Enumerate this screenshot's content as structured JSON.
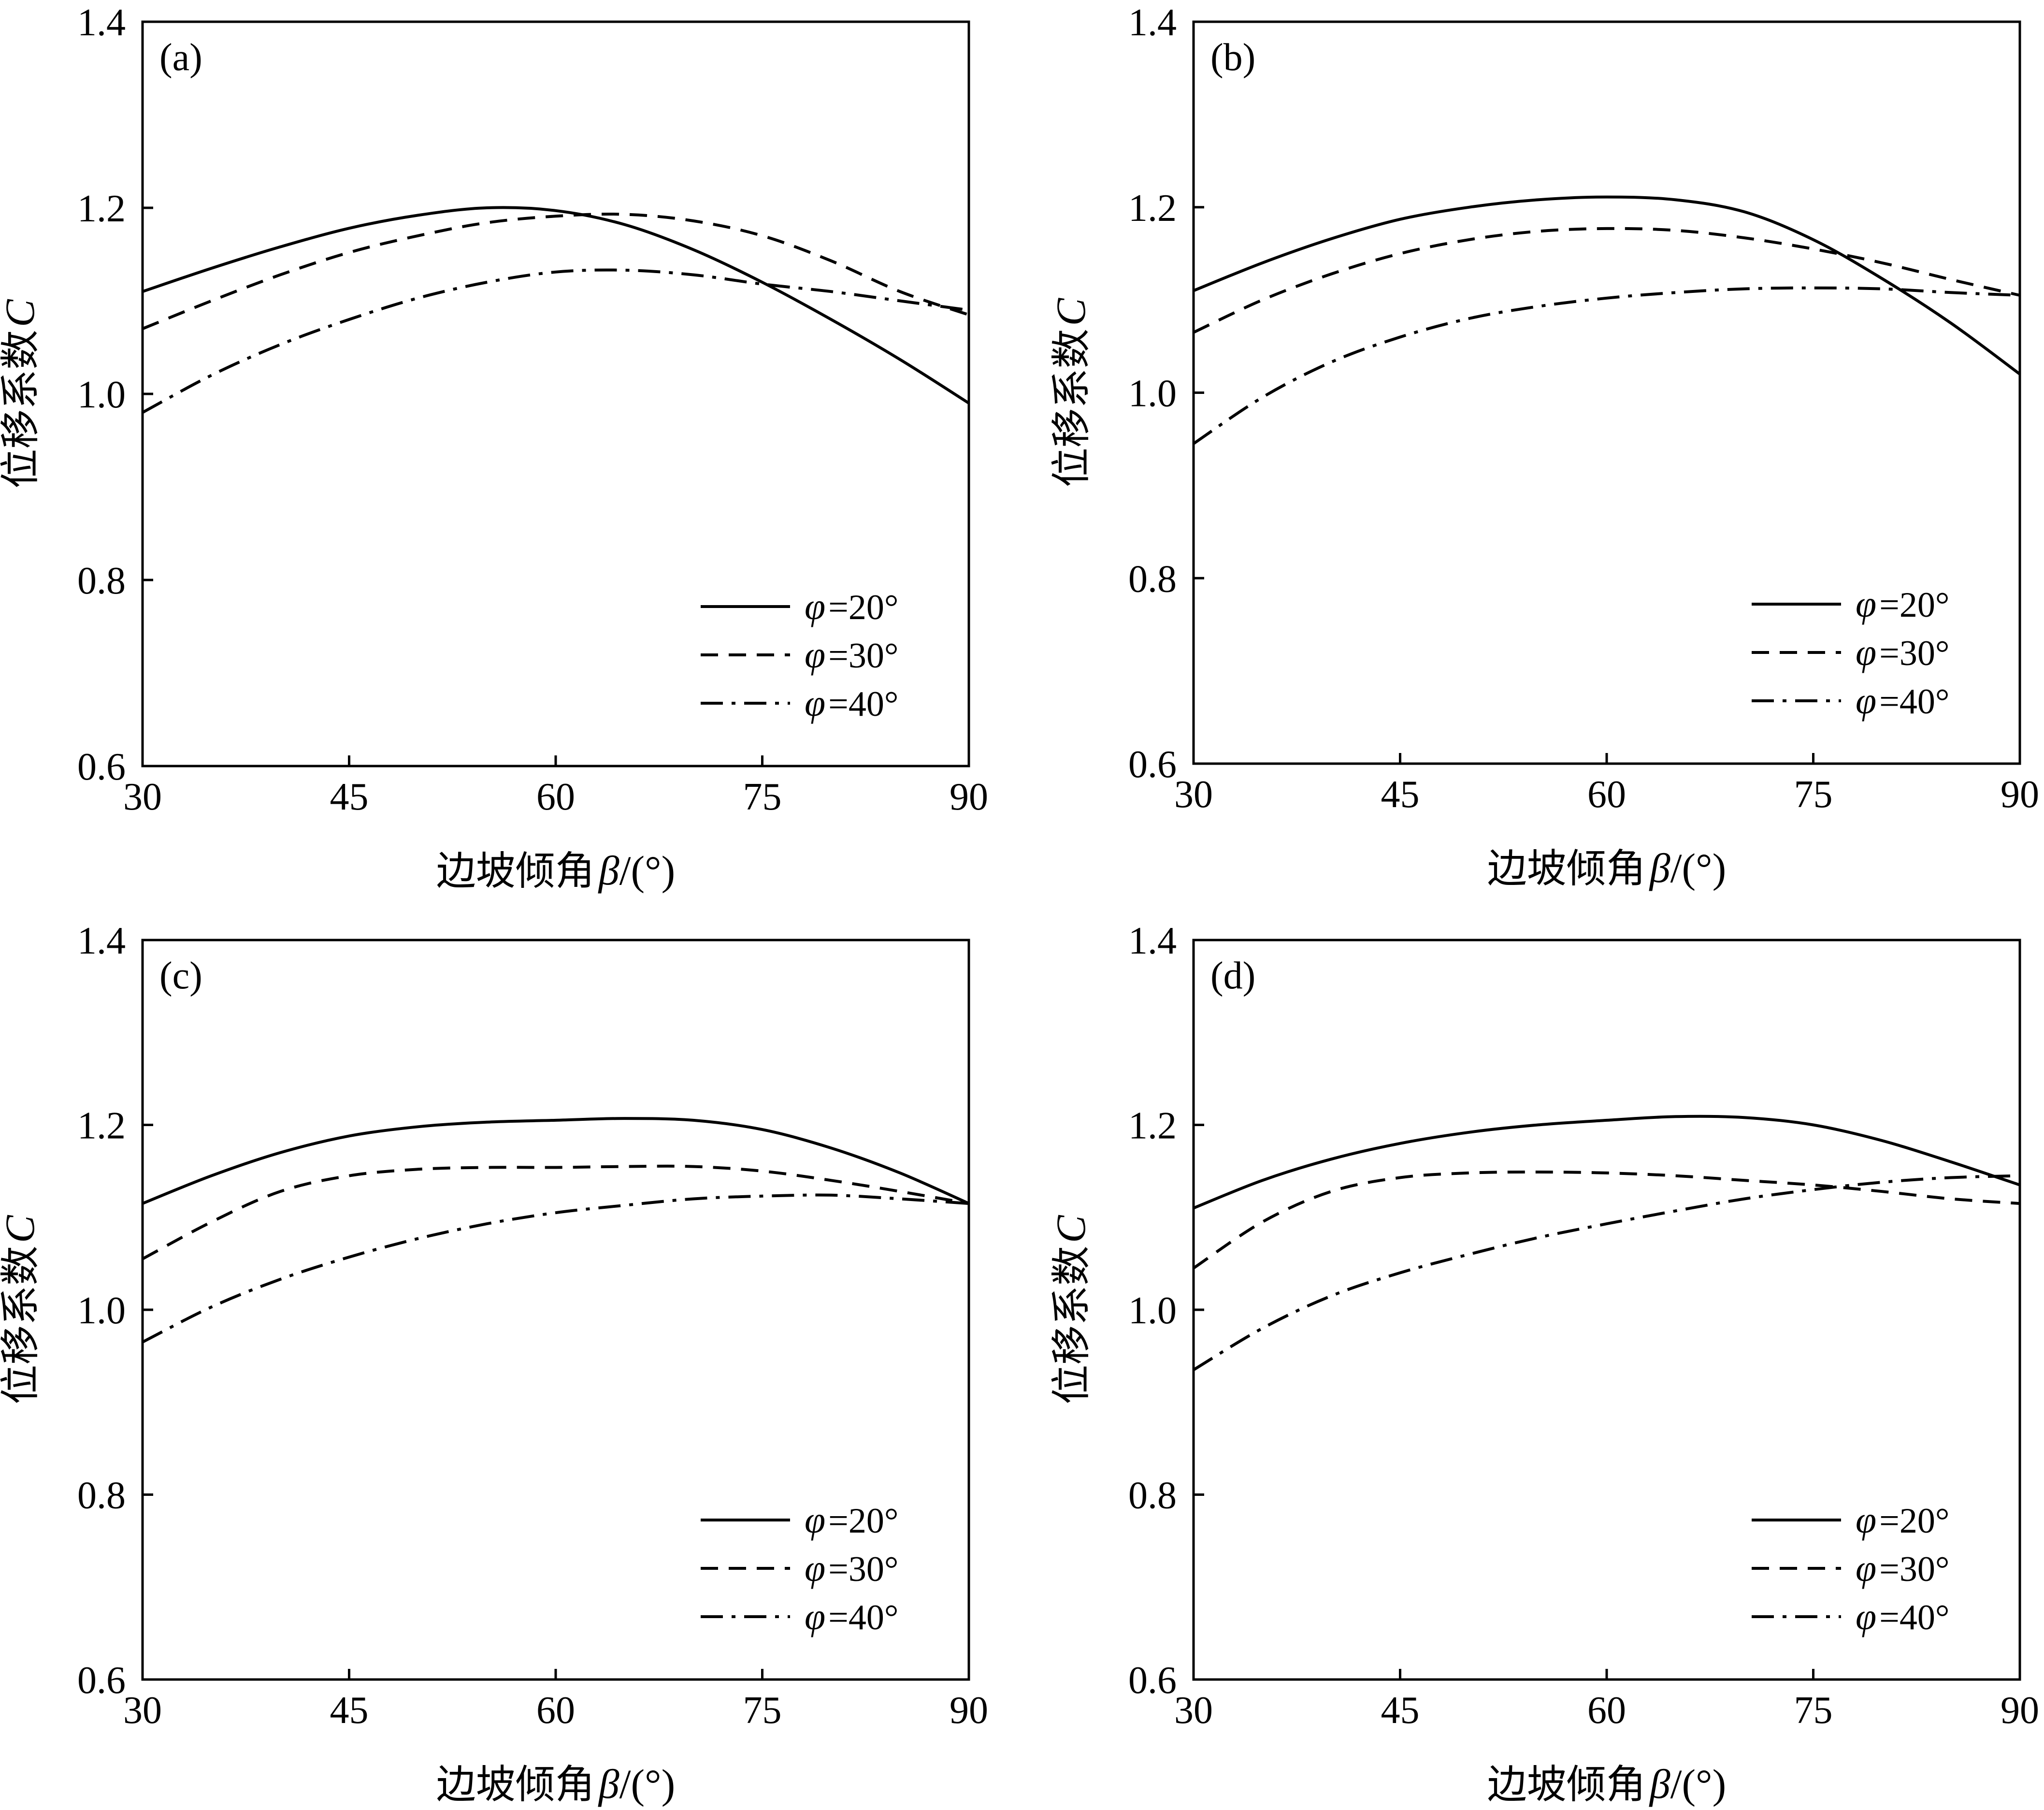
{
  "chart_data": [
    {
      "type": "line",
      "panel_label": "(a)",
      "xlabel": "边坡倾角",
      "xlabel_symbol": "β",
      "xlabel_unit": "/(°)",
      "ylabel": "位移系数",
      "ylabel_symbol": "C",
      "xlim": [
        30,
        90
      ],
      "ylim": [
        0.6,
        1.4
      ],
      "xticks": [
        "30",
        "45",
        "60",
        "75",
        "90"
      ],
      "yticks": [
        "0.6",
        "0.8",
        "1.0",
        "1.2",
        "1.4"
      ],
      "legend_position": "bottom-right",
      "grid": false,
      "x": [
        30,
        35,
        40,
        45,
        50,
        55,
        60,
        65,
        70,
        75,
        80,
        85,
        90
      ],
      "series": [
        {
          "name_symbol": "φ",
          "name_value": "=20°",
          "line_style": "solid",
          "values": [
            1.11,
            1.135,
            1.158,
            1.178,
            1.192,
            1.2,
            1.197,
            1.182,
            1.155,
            1.12,
            1.08,
            1.037,
            0.99
          ]
        },
        {
          "name_symbol": "φ",
          "name_value": "=30°",
          "line_style": "dashed",
          "values": [
            1.07,
            1.1,
            1.128,
            1.152,
            1.17,
            1.184,
            1.191,
            1.193,
            1.186,
            1.17,
            1.143,
            1.11,
            1.085
          ]
        },
        {
          "name_symbol": "φ",
          "name_value": "=40°",
          "line_style": "dashdot",
          "values": [
            0.98,
            1.02,
            1.053,
            1.08,
            1.103,
            1.12,
            1.131,
            1.133,
            1.128,
            1.118,
            1.11,
            1.1,
            1.09
          ]
        }
      ]
    },
    {
      "type": "line",
      "panel_label": "(b)",
      "xlabel": "边坡倾角",
      "xlabel_symbol": "β",
      "xlabel_unit": "/(°)",
      "ylabel": "位移系数",
      "ylabel_symbol": "C",
      "xlim": [
        30,
        90
      ],
      "ylim": [
        0.6,
        1.4
      ],
      "xticks": [
        "30",
        "45",
        "60",
        "75",
        "90"
      ],
      "yticks": [
        "0.6",
        "0.8",
        "1.0",
        "1.2",
        "1.4"
      ],
      "legend_position": "bottom-right",
      "grid": false,
      "x": [
        30,
        35,
        40,
        45,
        50,
        55,
        60,
        65,
        70,
        75,
        80,
        85,
        90
      ],
      "series": [
        {
          "name_symbol": "φ",
          "name_value": "=20°",
          "line_style": "solid",
          "values": [
            1.11,
            1.14,
            1.166,
            1.187,
            1.2,
            1.208,
            1.211,
            1.208,
            1.195,
            1.165,
            1.123,
            1.075,
            1.02
          ]
        },
        {
          "name_symbol": "φ",
          "name_value": "=30°",
          "line_style": "dashed",
          "values": [
            1.065,
            1.1,
            1.128,
            1.15,
            1.165,
            1.174,
            1.177,
            1.175,
            1.167,
            1.155,
            1.14,
            1.122,
            1.105
          ]
        },
        {
          "name_symbol": "φ",
          "name_value": "=40°",
          "line_style": "dashdot",
          "values": [
            0.945,
            0.995,
            1.033,
            1.06,
            1.08,
            1.093,
            1.102,
            1.108,
            1.112,
            1.113,
            1.112,
            1.108,
            1.105
          ]
        }
      ]
    },
    {
      "type": "line",
      "panel_label": "(c)",
      "xlabel": "边坡倾角",
      "xlabel_symbol": "β",
      "xlabel_unit": "/(°)",
      "ylabel": "位移系数",
      "ylabel_symbol": "C",
      "xlim": [
        30,
        90
      ],
      "ylim": [
        0.6,
        1.4
      ],
      "xticks": [
        "30",
        "45",
        "60",
        "75",
        "90"
      ],
      "yticks": [
        "0.6",
        "0.8",
        "1.0",
        "1.2",
        "1.4"
      ],
      "legend_position": "bottom-right",
      "grid": false,
      "x": [
        30,
        35,
        40,
        45,
        50,
        55,
        60,
        65,
        70,
        75,
        80,
        85,
        90
      ],
      "series": [
        {
          "name_symbol": "φ",
          "name_value": "=20°",
          "line_style": "solid",
          "values": [
            1.115,
            1.145,
            1.17,
            1.188,
            1.198,
            1.203,
            1.205,
            1.207,
            1.205,
            1.195,
            1.175,
            1.148,
            1.115
          ]
        },
        {
          "name_symbol": "φ",
          "name_value": "=30°",
          "line_style": "dashed",
          "values": [
            1.055,
            1.095,
            1.128,
            1.145,
            1.152,
            1.154,
            1.154,
            1.155,
            1.155,
            1.15,
            1.14,
            1.128,
            1.115
          ]
        },
        {
          "name_symbol": "φ",
          "name_value": "=40°",
          "line_style": "dashdot",
          "values": [
            0.965,
            1.003,
            1.033,
            1.057,
            1.077,
            1.093,
            1.105,
            1.113,
            1.12,
            1.123,
            1.124,
            1.12,
            1.115
          ]
        }
      ]
    },
    {
      "type": "line",
      "panel_label": "(d)",
      "xlabel": "边坡倾角",
      "xlabel_symbol": "β",
      "xlabel_unit": "/(°)",
      "ylabel": "位移系数",
      "ylabel_symbol": "C",
      "xlim": [
        30,
        90
      ],
      "ylim": [
        0.6,
        1.4
      ],
      "xticks": [
        "30",
        "45",
        "60",
        "75",
        "90"
      ],
      "yticks": [
        "0.6",
        "0.8",
        "1.0",
        "1.2",
        "1.4"
      ],
      "legend_position": "bottom-right",
      "grid": false,
      "x": [
        30,
        35,
        40,
        45,
        50,
        55,
        60,
        65,
        70,
        75,
        80,
        85,
        90
      ],
      "series": [
        {
          "name_symbol": "φ",
          "name_value": "=20°",
          "line_style": "solid",
          "values": [
            1.11,
            1.14,
            1.163,
            1.18,
            1.192,
            1.2,
            1.205,
            1.209,
            1.208,
            1.2,
            1.183,
            1.16,
            1.135
          ]
        },
        {
          "name_symbol": "φ",
          "name_value": "=30°",
          "line_style": "dashed",
          "values": [
            1.045,
            1.095,
            1.128,
            1.143,
            1.148,
            1.149,
            1.148,
            1.145,
            1.14,
            1.135,
            1.128,
            1.12,
            1.115
          ]
        },
        {
          "name_symbol": "φ",
          "name_value": "=40°",
          "line_style": "dashdot",
          "values": [
            0.935,
            0.98,
            1.015,
            1.04,
            1.06,
            1.078,
            1.093,
            1.107,
            1.12,
            1.13,
            1.138,
            1.143,
            1.145
          ]
        }
      ]
    }
  ]
}
